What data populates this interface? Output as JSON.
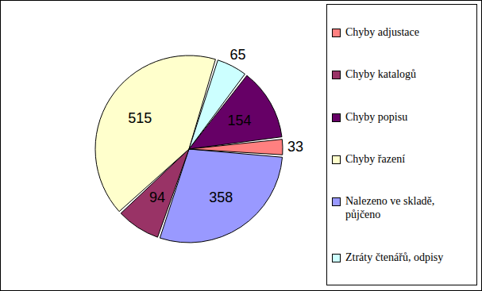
{
  "chart_data": {
    "type": "pie",
    "categories": [
      "Nalezeno ve skladě, půjčeno",
      "Chyby katalogů",
      "Chyby řazení",
      "Ztráty čtenářů, odpisy",
      "Chyby popisu",
      "Chyby adjustace"
    ],
    "values": [
      358,
      94,
      515,
      65,
      154,
      33
    ],
    "colors": [
      "#9999ff",
      "#993366",
      "#ffffcc",
      "#ccffff",
      "#660066",
      "#ff8080"
    ],
    "data_labels": true,
    "legend": "right"
  }
}
